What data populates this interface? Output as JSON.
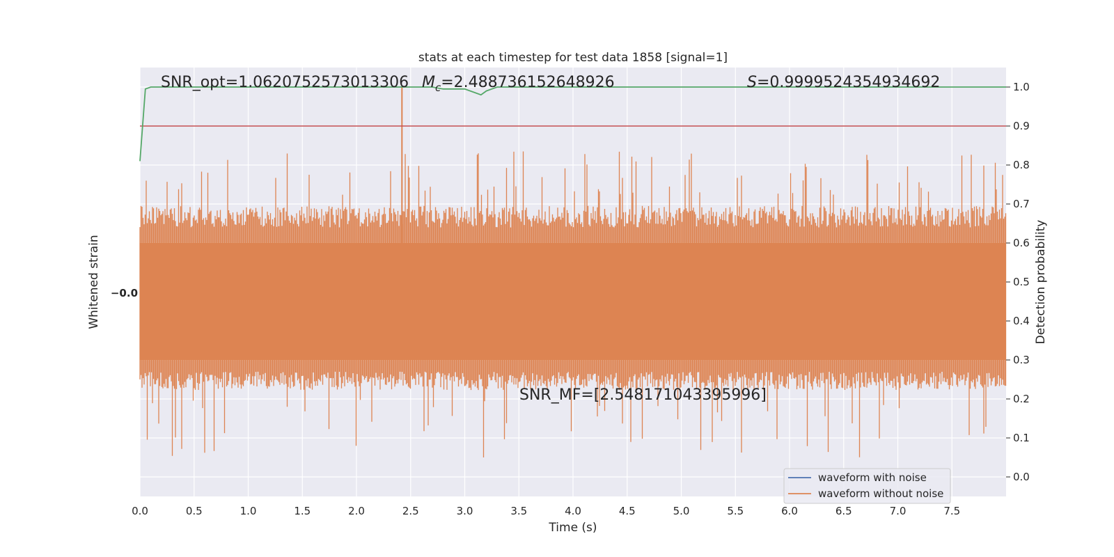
{
  "chart_data": {
    "type": "line",
    "title": "stats at each timestep for test data 1858 [signal=1]",
    "xlabel": "Time (s)",
    "ylabel_left": "Whitened strain",
    "ylabel_right": "Detection probability",
    "xlim": [
      0,
      8
    ],
    "ylim_right": [
      -0.05,
      1.05
    ],
    "x_ticks": [
      "0.0",
      "0.5",
      "1.0",
      "1.5",
      "2.0",
      "2.5",
      "3.0",
      "3.5",
      "4.0",
      "4.5",
      "5.0",
      "5.5",
      "6.0",
      "6.5",
      "7.0",
      "7.5"
    ],
    "right_ticks": [
      "0.0",
      "0.1",
      "0.2",
      "0.3",
      "0.4",
      "0.5",
      "0.6",
      "0.7",
      "0.8",
      "0.9",
      "1.0"
    ],
    "threshold": 0.9,
    "annotations": {
      "snr_opt": "SNR_opt=1.0620752573013306",
      "chirp_mass_symbol": "M",
      "chirp_mass_subscript": "c",
      "chirp_mass_value": "=2.488736152648926",
      "stat_symbol": "S",
      "stat_value": "=0.9999524354934692",
      "snr_mf": "SNR_MF=[2.548171043395996]"
    },
    "series": [
      {
        "name": "waveform with noise",
        "color": "#4c72b0"
      },
      {
        "name": "waveform without noise",
        "color": "#dd8452"
      }
    ],
    "detection_probability": {
      "color": "#55a868",
      "x": [
        0.0,
        0.05,
        0.1,
        0.2,
        0.3,
        0.5,
        1.0,
        1.5,
        2.0,
        2.5,
        2.6,
        2.7,
        2.8,
        2.9,
        3.0,
        3.05,
        3.1,
        3.15,
        3.2,
        3.25,
        3.3,
        3.5,
        4.0,
        5.0,
        6.0,
        7.0,
        8.0
      ],
      "y": [
        0.81,
        0.995,
        1.0,
        1.0,
        1.0,
        1.0,
        1.0,
        1.0,
        1.0,
        1.0,
        1.0,
        1.0,
        0.995,
        0.995,
        0.995,
        0.99,
        0.985,
        0.98,
        0.99,
        0.995,
        1.0,
        1.0,
        1.0,
        1.0,
        1.0,
        1.0,
        1.0
      ]
    },
    "left_axis_tick_labels": "−0.0",
    "strain_envelope": {
      "core_top": 0.6,
      "core_bottom": 0.3,
      "outer_top": 0.7,
      "outer_bottom": 0.25
    },
    "grid": true,
    "legend": "lower-right"
  }
}
